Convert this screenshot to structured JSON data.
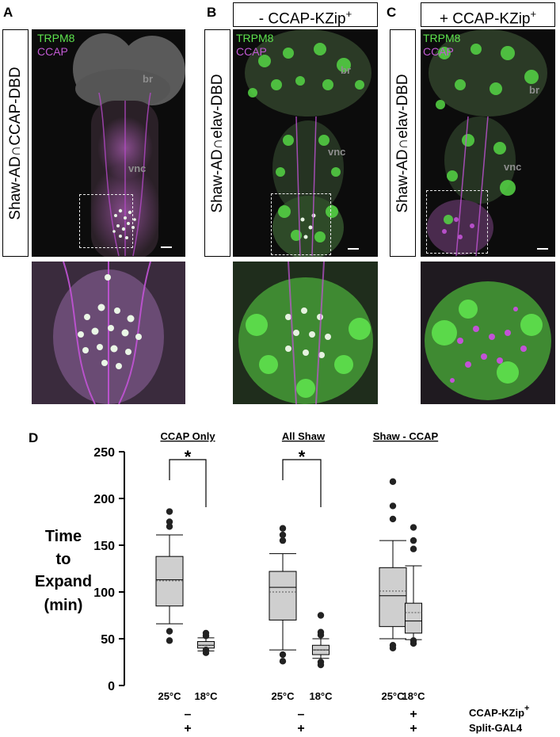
{
  "panels": {
    "A": {
      "letter": "A",
      "side_label": "Shaw-AD∩CCAP-DBD",
      "legend_green": "TRPM8",
      "legend_magenta": "CCAP",
      "region_br": "br",
      "region_vnc": "vnc"
    },
    "B": {
      "letter": "B",
      "top_label": "- CCAP-KZip",
      "top_sup": "+",
      "side_label": "Shaw-AD∩elav-DBD",
      "legend_green": "TRPM8",
      "legend_magenta": "CCAP",
      "region_br": "br",
      "region_vnc": "vnc"
    },
    "C": {
      "letter": "C",
      "top_label": "+ CCAP-KZip",
      "top_sup": "+",
      "side_label": "Shaw-AD∩elav-DBD",
      "legend_green": "TRPM8",
      "legend_magenta": "CCAP",
      "region_br": "br",
      "region_vnc": "vnc"
    },
    "D": {
      "letter": "D"
    }
  },
  "colors": {
    "green": "#5ee34e",
    "magenta": "#c15ad3",
    "box_fill": "#cfcfcf"
  },
  "chart_data": {
    "type": "box",
    "ylabel": "Time to Expand (min)",
    "ylabel_lines": [
      "Time",
      "to",
      "Expand",
      "(min)"
    ],
    "ylim": [
      0,
      250
    ],
    "yticks": [
      0,
      50,
      100,
      150,
      200,
      250
    ],
    "groups": [
      {
        "title": "CCAP Only",
        "significance": "*",
        "kzip": "–",
        "splitgal4": "+",
        "boxes": [
          {
            "label": "25°C",
            "min": 66,
            "q1": 85,
            "median": 113,
            "mean": 112,
            "q3": 138,
            "max": 161,
            "outliers": [
              48,
              58,
              170,
              175,
              186
            ]
          },
          {
            "label": "18°C",
            "min": 37,
            "q1": 40,
            "median": 43,
            "mean": 43,
            "q3": 47,
            "max": 51,
            "outliers": [
              35,
              38,
              53,
              56
            ]
          }
        ]
      },
      {
        "title": "All Shaw",
        "significance": "*",
        "kzip": "–",
        "splitgal4": "+",
        "boxes": [
          {
            "label": "25°C",
            "min": 38,
            "q1": 70,
            "median": 105,
            "mean": 100,
            "q3": 122,
            "max": 141,
            "outliers": [
              26,
              33,
              155,
              161,
              168
            ]
          },
          {
            "label": "18°C",
            "min": 29,
            "q1": 33,
            "median": 38,
            "mean": 38,
            "q3": 43,
            "max": 50,
            "outliers": [
              22,
              25,
              54,
              57,
              75
            ]
          }
        ]
      },
      {
        "title": "Shaw - CCAP",
        "significance": "",
        "kzip": "+",
        "splitgal4": "+",
        "boxes": [
          {
            "label": "25°C",
            "min": 50,
            "q1": 63,
            "median": 96,
            "mean": 101,
            "q3": 126,
            "max": 155,
            "outliers": [
              40,
              43,
              178,
              192,
              218
            ]
          },
          {
            "label": "18°C",
            "min": 49,
            "q1": 56,
            "median": 69,
            "mean": 78,
            "q3": 88,
            "max": 128,
            "outliers": [
              45,
              48,
              146,
              155,
              169
            ]
          }
        ]
      }
    ],
    "row_labels": {
      "kzip": "CCAP-KZip",
      "kzip_sup": "+",
      "splitgal4": "Split-GAL4"
    }
  }
}
